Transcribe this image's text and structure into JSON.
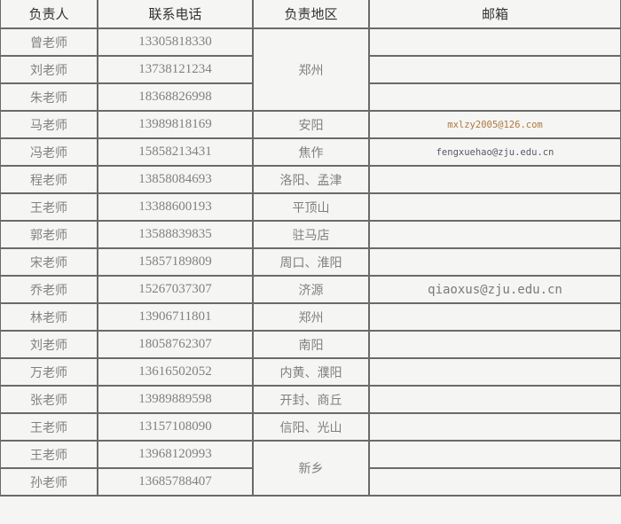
{
  "headers": [
    "负责人",
    "联系电话",
    "负责地区",
    "邮箱"
  ],
  "rows": [
    {
      "name": "曾老师",
      "phone": "13305818330",
      "region": "郑州",
      "email": ""
    },
    {
      "name": "刘老师",
      "phone": "13738121234",
      "region": null,
      "email": ""
    },
    {
      "name": "朱老师",
      "phone": "18368826998",
      "region": null,
      "email": ""
    },
    {
      "name": "马老师",
      "phone": "13989818169",
      "region": "安阳",
      "email": "mxlzy2005@126.com"
    },
    {
      "name": "冯老师",
      "phone": "15858213431",
      "region": "焦作",
      "email": "fengxuehao@zju.edu.cn"
    },
    {
      "name": "程老师",
      "phone": "13858084693",
      "region": "洛阳、孟津",
      "email": ""
    },
    {
      "name": "王老师",
      "phone": "13388600193",
      "region": "平顶山",
      "email": ""
    },
    {
      "name": "郭老师",
      "phone": "13588839835",
      "region": "驻马店",
      "email": ""
    },
    {
      "name": "宋老师",
      "phone": "15857189809",
      "region": "周口、淮阳",
      "email": ""
    },
    {
      "name": "乔老师",
      "phone": "15267037307",
      "region": "济源",
      "email": "qiaoxus@zju.edu.cn"
    },
    {
      "name": "林老师",
      "phone": "13906711801",
      "region": "郑州",
      "email": ""
    },
    {
      "name": "刘老师",
      "phone": "18058762307",
      "region": "南阳",
      "email": ""
    },
    {
      "name": "万老师",
      "phone": "13616502052",
      "region": "内黄、濮阳",
      "email": ""
    },
    {
      "name": "张老师",
      "phone": "13989889598",
      "region": "开封、商丘",
      "email": ""
    },
    {
      "name": "王老师",
      "phone": "13157108090",
      "region": "信阳、光山",
      "email": ""
    },
    {
      "name": "王老师",
      "phone": "13968120993",
      "region": "新乡",
      "email": ""
    },
    {
      "name": "孙老师",
      "phone": "13685788407",
      "region": null,
      "email": ""
    }
  ],
  "colors": {
    "email_highlight": "#b0783c",
    "border": "#6a6a6a",
    "background": "#f5f5f3"
  }
}
